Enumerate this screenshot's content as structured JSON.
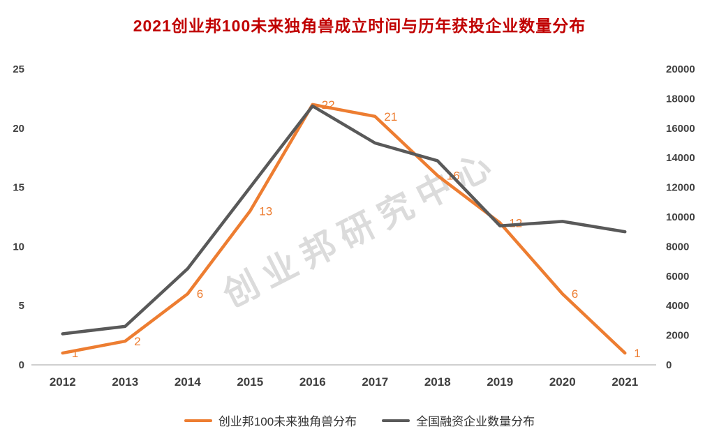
{
  "title": "2021创业邦100未来独角兽成立时间与历年获投企业数量分布",
  "watermark": "创业邦研究中心",
  "colors": {
    "title": "#C00000",
    "orange": "#ED7D31",
    "gray": "#595959",
    "axis_text": "#404040",
    "axis_line": "#BFBFBF",
    "background": "#FFFFFF"
  },
  "chart_data": {
    "type": "line",
    "title": "2021创业邦100未来独角兽成立时间与历年获投企业数量分布",
    "categories": [
      "2012",
      "2013",
      "2014",
      "2015",
      "2016",
      "2017",
      "2018",
      "2019",
      "2020",
      "2021"
    ],
    "series": [
      {
        "name": "创业邦100未来独角兽分布",
        "axis": "left",
        "color": "#ED7D31",
        "values": [
          1,
          2,
          6,
          13,
          22,
          21,
          16,
          12,
          6,
          1
        ],
        "labels_visible": true
      },
      {
        "name": "全国融资企业数量分布",
        "axis": "right",
        "color": "#595959",
        "values": [
          2100,
          2600,
          6500,
          12000,
          17500,
          15000,
          13800,
          9400,
          9700,
          9000
        ],
        "labels_visible": false
      }
    ],
    "left_axis": {
      "min": 0,
      "max": 25,
      "step": 5,
      "ticks": [
        0,
        5,
        10,
        15,
        20,
        25
      ]
    },
    "right_axis": {
      "min": 0,
      "max": 20000,
      "step": 2000,
      "ticks": [
        0,
        2000,
        4000,
        6000,
        8000,
        10000,
        12000,
        14000,
        16000,
        18000,
        20000
      ]
    },
    "grid": false,
    "legend_position": "bottom"
  }
}
